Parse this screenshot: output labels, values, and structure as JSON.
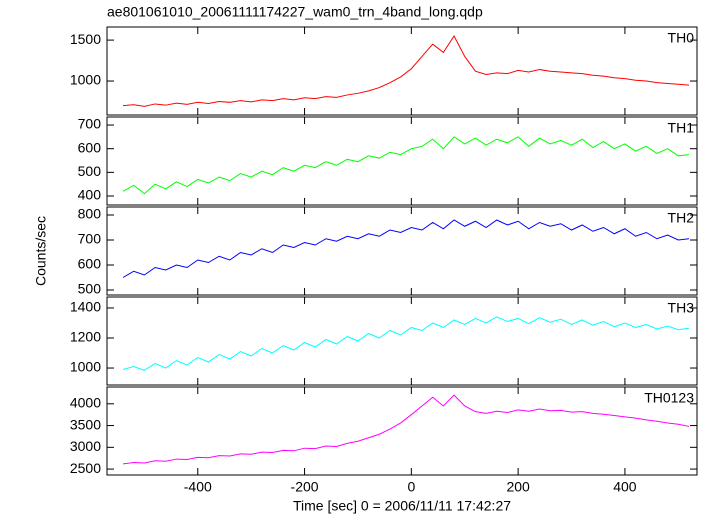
{
  "chart_data": [
    {
      "type": "line",
      "title": "ae801061010_20061111174227_wam0_trn_4band_long.qdp",
      "x": [
        -540,
        -520,
        -500,
        -480,
        -460,
        -440,
        -420,
        -400,
        -380,
        -360,
        -340,
        -320,
        -300,
        -280,
        -260,
        -240,
        -220,
        -200,
        -180,
        -160,
        -140,
        -120,
        -100,
        -80,
        -60,
        -40,
        -20,
        0,
        20,
        40,
        60,
        80,
        100,
        120,
        140,
        160,
        180,
        200,
        220,
        240,
        260,
        280,
        300,
        320,
        340,
        360,
        380,
        400,
        420,
        440,
        460,
        480,
        500,
        520
      ],
      "xlim": [
        -570,
        535
      ],
      "xticks": [
        -400,
        -200,
        0,
        200,
        400
      ],
      "ylim": [
        585,
        1660
      ],
      "yticks": [
        1000,
        1500
      ],
      "series": [
        {
          "name": "TH0",
          "color": "#ff0000",
          "values": [
            700,
            710,
            690,
            720,
            705,
            730,
            715,
            740,
            725,
            750,
            740,
            760,
            745,
            770,
            760,
            785,
            770,
            795,
            785,
            810,
            800,
            830,
            850,
            880,
            920,
            980,
            1050,
            1150,
            1300,
            1450,
            1350,
            1550,
            1300,
            1120,
            1080,
            1100,
            1090,
            1130,
            1110,
            1140,
            1120,
            1110,
            1100,
            1090,
            1070,
            1060,
            1040,
            1030,
            1010,
            1000,
            980,
            970,
            960,
            950
          ]
        }
      ]
    },
    {
      "type": "line",
      "x": [
        -540,
        -520,
        -500,
        -480,
        -460,
        -440,
        -420,
        -400,
        -380,
        -360,
        -340,
        -320,
        -300,
        -280,
        -260,
        -240,
        -220,
        -200,
        -180,
        -160,
        -140,
        -120,
        -100,
        -80,
        -60,
        -40,
        -20,
        0,
        20,
        40,
        60,
        80,
        100,
        120,
        140,
        160,
        180,
        200,
        220,
        240,
        260,
        280,
        300,
        320,
        340,
        360,
        380,
        400,
        420,
        440,
        460,
        480,
        500,
        520
      ],
      "xlim": [
        -570,
        535
      ],
      "xticks": [
        -400,
        -200,
        0,
        200,
        400
      ],
      "ylim": [
        362,
        734
      ],
      "yticks": [
        400,
        500,
        600,
        700
      ],
      "series": [
        {
          "name": "TH1",
          "color": "#00ff00",
          "values": [
            420,
            445,
            410,
            450,
            430,
            460,
            440,
            470,
            455,
            480,
            465,
            495,
            480,
            505,
            490,
            520,
            505,
            530,
            520,
            545,
            530,
            555,
            545,
            570,
            560,
            585,
            575,
            600,
            610,
            640,
            600,
            650,
            620,
            645,
            615,
            640,
            625,
            650,
            610,
            645,
            620,
            635,
            615,
            640,
            605,
            630,
            600,
            620,
            590,
            610,
            580,
            600,
            570,
            575
          ]
        }
      ]
    },
    {
      "type": "line",
      "ylabel": "Counts/sec",
      "x": [
        -540,
        -520,
        -500,
        -480,
        -460,
        -440,
        -420,
        -400,
        -380,
        -360,
        -340,
        -320,
        -300,
        -280,
        -260,
        -240,
        -220,
        -200,
        -180,
        -160,
        -140,
        -120,
        -100,
        -80,
        -60,
        -40,
        -20,
        0,
        20,
        40,
        60,
        80,
        100,
        120,
        140,
        160,
        180,
        200,
        220,
        240,
        260,
        280,
        300,
        320,
        340,
        360,
        380,
        400,
        420,
        440,
        460,
        480,
        500,
        520
      ],
      "xlim": [
        -570,
        535
      ],
      "xticks": [
        -400,
        -200,
        0,
        200,
        400
      ],
      "ylim": [
        480,
        832
      ],
      "yticks": [
        500,
        600,
        700,
        800
      ],
      "series": [
        {
          "name": "TH2",
          "color": "#0000ff",
          "values": [
            550,
            575,
            560,
            590,
            580,
            600,
            590,
            620,
            610,
            635,
            620,
            650,
            640,
            665,
            650,
            680,
            670,
            690,
            680,
            705,
            695,
            715,
            705,
            725,
            715,
            740,
            730,
            750,
            740,
            770,
            745,
            780,
            755,
            775,
            750,
            780,
            760,
            775,
            745,
            770,
            755,
            765,
            740,
            760,
            735,
            750,
            725,
            745,
            715,
            730,
            705,
            720,
            700,
            705
          ]
        }
      ]
    },
    {
      "type": "line",
      "x": [
        -540,
        -520,
        -500,
        -480,
        -460,
        -440,
        -420,
        -400,
        -380,
        -360,
        -340,
        -320,
        -300,
        -280,
        -260,
        -240,
        -220,
        -200,
        -180,
        -160,
        -140,
        -120,
        -100,
        -80,
        -60,
        -40,
        -20,
        0,
        20,
        40,
        60,
        80,
        100,
        120,
        140,
        160,
        180,
        200,
        220,
        240,
        260,
        280,
        300,
        320,
        340,
        360,
        380,
        400,
        420,
        440,
        460,
        480,
        500,
        520
      ],
      "xlim": [
        -570,
        535
      ],
      "xticks": [
        -400,
        -200,
        0,
        200,
        400
      ],
      "ylim": [
        887,
        1473
      ],
      "yticks": [
        1000,
        1200,
        1400
      ],
      "series": [
        {
          "name": "TH3",
          "color": "#00ffff",
          "values": [
            990,
            1010,
            985,
            1030,
            1000,
            1050,
            1020,
            1070,
            1040,
            1090,
            1060,
            1110,
            1080,
            1130,
            1100,
            1150,
            1120,
            1170,
            1140,
            1190,
            1160,
            1210,
            1180,
            1230,
            1200,
            1250,
            1220,
            1270,
            1250,
            1300,
            1270,
            1320,
            1290,
            1330,
            1300,
            1340,
            1310,
            1330,
            1295,
            1335,
            1305,
            1325,
            1290,
            1320,
            1285,
            1310,
            1275,
            1300,
            1270,
            1290,
            1260,
            1280,
            1255,
            1265
          ]
        }
      ]
    },
    {
      "type": "line",
      "xlabel": "Time [sec] 0 = 2006/11/11 17:42:27",
      "x": [
        -540,
        -520,
        -500,
        -480,
        -460,
        -440,
        -420,
        -400,
        -380,
        -360,
        -340,
        -320,
        -300,
        -280,
        -260,
        -240,
        -220,
        -200,
        -180,
        -160,
        -140,
        -120,
        -100,
        -80,
        -60,
        -40,
        -20,
        0,
        20,
        40,
        60,
        80,
        100,
        120,
        140,
        160,
        180,
        200,
        220,
        240,
        260,
        280,
        300,
        320,
        340,
        360,
        380,
        400,
        420,
        440,
        460,
        480,
        500,
        520
      ],
      "xlim": [
        -570,
        535
      ],
      "xticks": [
        -400,
        -200,
        0,
        200,
        400
      ],
      "ylim": [
        2364,
        4386
      ],
      "yticks": [
        2500,
        3000,
        3500,
        4000
      ],
      "series": [
        {
          "name": "TH0123",
          "color": "#ff00ff",
          "values": [
            2620,
            2650,
            2640,
            2690,
            2680,
            2730,
            2720,
            2770,
            2760,
            2810,
            2800,
            2850,
            2840,
            2890,
            2880,
            2930,
            2920,
            2980,
            2970,
            3030,
            3020,
            3090,
            3140,
            3220,
            3300,
            3420,
            3560,
            3750,
            3950,
            4150,
            3950,
            4200,
            3950,
            3820,
            3780,
            3830,
            3800,
            3860,
            3830,
            3880,
            3840,
            3850,
            3810,
            3820,
            3780,
            3760,
            3730,
            3700,
            3670,
            3630,
            3600,
            3560,
            3530,
            3480
          ]
        }
      ]
    }
  ]
}
